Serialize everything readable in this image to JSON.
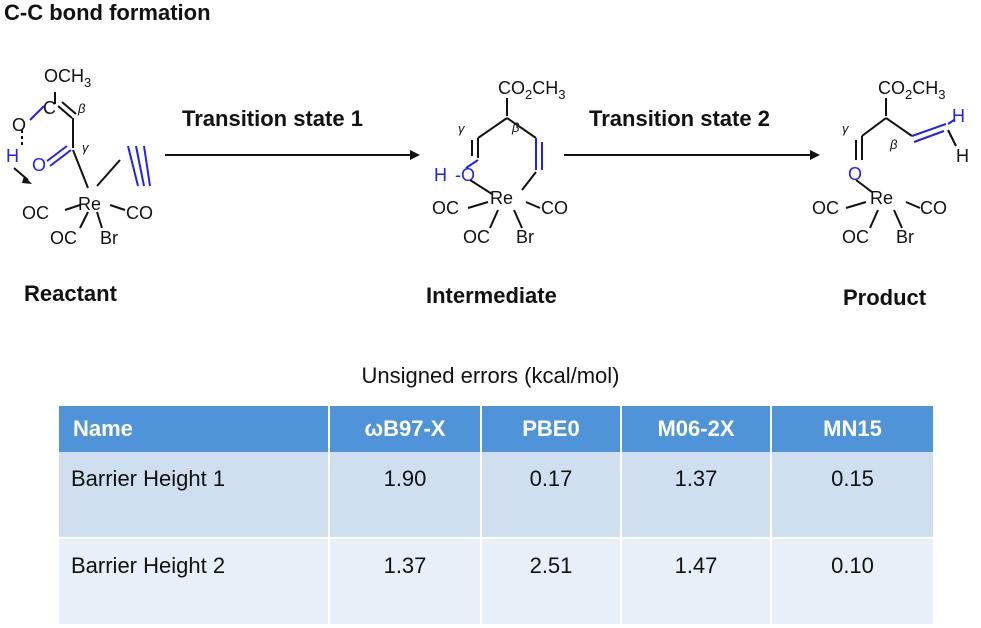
{
  "title": "C-C bond formation",
  "scheme": {
    "transition_labels": [
      "Transition state 1",
      "Transition state 2"
    ],
    "stages": [
      "Reactant",
      "Intermediate",
      "Product"
    ],
    "atoms": {
      "ome": "OCH",
      "ome_sub": "3",
      "co2": "CO",
      "co2_sub": "2",
      "ch": "CH",
      "ch_sub": "3",
      "re": "Re",
      "oc": "OC",
      "co": "CO",
      "br": "Br",
      "h": "H",
      "o": "O",
      "c": "C",
      "beta": "β",
      "gamma": "γ"
    },
    "colors": {
      "blue": "#2222ee",
      "black": "#111111"
    }
  },
  "table": {
    "caption": "Unsigned errors (kcal/mol)",
    "columns": [
      "Name",
      "ωB97-X",
      "PBE0",
      "M06-2X",
      "MN15"
    ],
    "rows": [
      [
        "Barrier Height 1",
        "1.90",
        "0.17",
        "1.37",
        "0.15"
      ],
      [
        "Barrier Height 2",
        "1.37",
        "2.51",
        "1.47",
        "0.10"
      ]
    ],
    "header_color": "#4f93d8",
    "row_colors": [
      "#cfdff0",
      "#e7eff8"
    ]
  }
}
